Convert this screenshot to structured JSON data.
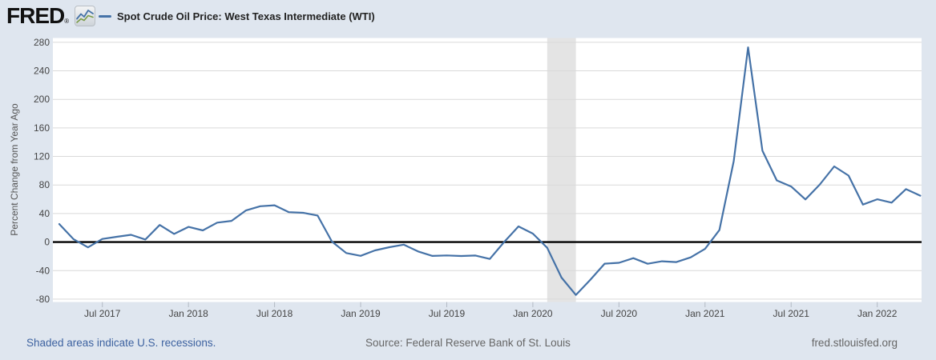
{
  "header": {
    "logo_text": "FRED",
    "registered_mark": "®",
    "series_label": "Spot Crude Oil Price: West Texas Intermediate (WTI)"
  },
  "footer": {
    "recession_note": "Shaded areas indicate U.S. recessions.",
    "source": "Source: Federal Reserve Bank of St. Louis",
    "site": "fred.stlouisfed.org"
  },
  "colors": {
    "page_background": "#dfe6ef",
    "plot_background": "#ffffff",
    "series_line": "#4572a7",
    "zero_line": "#000000",
    "gridline": "#d9d9d9",
    "recession_band": "#e4e4e4",
    "tick_mark": "#b3bac4",
    "tick_label": "#444444",
    "axis_title": "#555555"
  },
  "chart_data": {
    "type": "line",
    "title": "Spot Crude Oil Price: West Texas Intermediate (WTI)",
    "ylabel": "Percent Change from Year Ago",
    "xlabel": "",
    "frequency": "monthly",
    "x_start": "2017-04",
    "x_end": "2022-04",
    "x_tick_labels": [
      "Jul 2017",
      "Jan 2018",
      "Jul 2018",
      "Jan 2019",
      "Jul 2019",
      "Jan 2020",
      "Jul 2020",
      "Jan 2021",
      "Jul 2021",
      "Jan 2022"
    ],
    "x_tick_month_indices": [
      3,
      9,
      15,
      21,
      27,
      33,
      39,
      45,
      51,
      57
    ],
    "y_ticks": [
      280,
      240,
      200,
      160,
      120,
      80,
      40,
      0,
      -40,
      -80
    ],
    "ylim": [
      -84,
      286
    ],
    "grid": true,
    "zero_line": true,
    "legend_position": "top-left",
    "recession_band_month_range": [
      34,
      36
    ],
    "recession_band_dates": [
      "2020-02",
      "2020-04"
    ],
    "series": [
      {
        "name": "Spot Crude Oil Price: West Texas Intermediate (WTI)",
        "units": "Percent Change from Year Ago",
        "values": [
          25.2,
          3.9,
          -7.4,
          4.3,
          7.4,
          10.2,
          3.6,
          24.0,
          11.4,
          21.3,
          16.3,
          27.2,
          29.7,
          44.3,
          50.2,
          51.5,
          41.9,
          41.0,
          37.2,
          0.7,
          -15.4,
          -19.3,
          -11.7,
          -7.2,
          -3.6,
          -13.1,
          -19.4,
          -18.7,
          -19.5,
          -18.9,
          -23.7,
          0.1,
          22.0,
          11.9,
          -8.0,
          -49.8,
          -74.1,
          -53.0,
          -30.3,
          -29.1,
          -22.6,
          -30.4,
          -26.9,
          -28.1,
          -21.4,
          -9.6,
          16.8,
          113.4,
          272.9,
          128.0,
          86.4,
          77.9,
          59.7,
          80.8,
          106.0,
          93.2,
          52.6,
          60.0,
          55.3,
          74.2,
          65.0
        ]
      }
    ]
  }
}
